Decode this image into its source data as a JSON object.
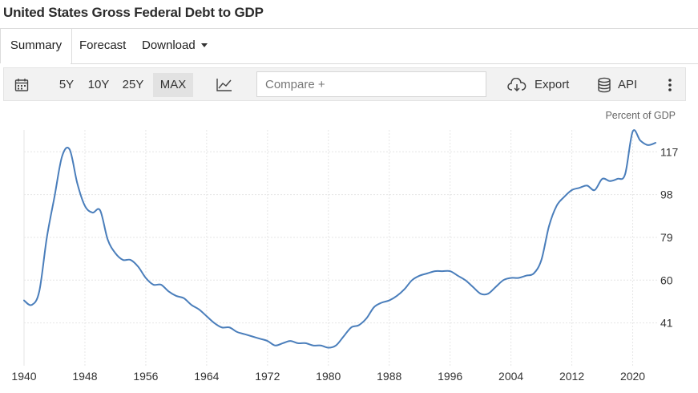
{
  "page": {
    "title": "United States Gross Federal Debt to GDP"
  },
  "tabs": [
    {
      "label": "Summary",
      "active": true
    },
    {
      "label": "Forecast",
      "active": false
    },
    {
      "label": "Download",
      "active": false
    }
  ],
  "toolbar": {
    "calendar_icon": "calendar-icon",
    "ranges": [
      {
        "label": "5Y",
        "active": false
      },
      {
        "label": "10Y",
        "active": false
      },
      {
        "label": "25Y",
        "active": false
      },
      {
        "label": "MAX",
        "active": true
      }
    ],
    "chart_type_icon": "line-chart-icon",
    "compare_placeholder": "Compare +",
    "export_label": "Export",
    "export_icon": "cloud-download-icon",
    "api_label": "API",
    "api_icon": "database-icon",
    "more_icon": "more-vertical-icon"
  },
  "colors": {
    "line": "#4a7ebb",
    "grid": "#e6e6e6",
    "text": "#333333"
  },
  "chart_data": {
    "type": "line",
    "title": "",
    "xlabel": "",
    "ylabel": "Percent of GDP",
    "xlim": [
      1940,
      2023
    ],
    "ylim": [
      22,
      126
    ],
    "y_axis_position": "right",
    "x_ticks": [
      1940,
      1948,
      1956,
      1964,
      1972,
      1980,
      1988,
      1996,
      2004,
      2012,
      2020
    ],
    "y_ticks": [
      41,
      60,
      79,
      98,
      117
    ],
    "grid": true,
    "series": [
      {
        "name": "",
        "x": [
          1940,
          1941,
          1942,
          1943,
          1944,
          1945,
          1946,
          1947,
          1948,
          1949,
          1950,
          1951,
          1952,
          1953,
          1954,
          1955,
          1956,
          1957,
          1958,
          1959,
          1960,
          1961,
          1962,
          1963,
          1964,
          1965,
          1966,
          1967,
          1968,
          1969,
          1970,
          1971,
          1972,
          1973,
          1974,
          1975,
          1976,
          1977,
          1978,
          1979,
          1980,
          1981,
          1982,
          1983,
          1984,
          1985,
          1986,
          1987,
          1988,
          1989,
          1990,
          1991,
          1992,
          1993,
          1994,
          1995,
          1996,
          1997,
          1998,
          1999,
          2000,
          2001,
          2002,
          2003,
          2004,
          2005,
          2006,
          2007,
          2008,
          2009,
          2010,
          2011,
          2012,
          2013,
          2014,
          2015,
          2016,
          2017,
          2018,
          2019,
          2020,
          2021,
          2022,
          2023
        ],
        "values": [
          51,
          49,
          55,
          79,
          97,
          115,
          118,
          103,
          93,
          90,
          91,
          78,
          72,
          69,
          69,
          66,
          61,
          58,
          58,
          55,
          53,
          52,
          49,
          47,
          44,
          41,
          39,
          39,
          37,
          36,
          35,
          34,
          33,
          31,
          32,
          33,
          32,
          32,
          31,
          31,
          30,
          31,
          35,
          39,
          40,
          43,
          48,
          50,
          51,
          53,
          56,
          60,
          62,
          63,
          64,
          64,
          64,
          62,
          60,
          57,
          54,
          54,
          57,
          60,
          61,
          61,
          62,
          63,
          69,
          84,
          93,
          97,
          100,
          101,
          102,
          100,
          105,
          104,
          105,
          107,
          126,
          122,
          120,
          121
        ]
      }
    ]
  }
}
